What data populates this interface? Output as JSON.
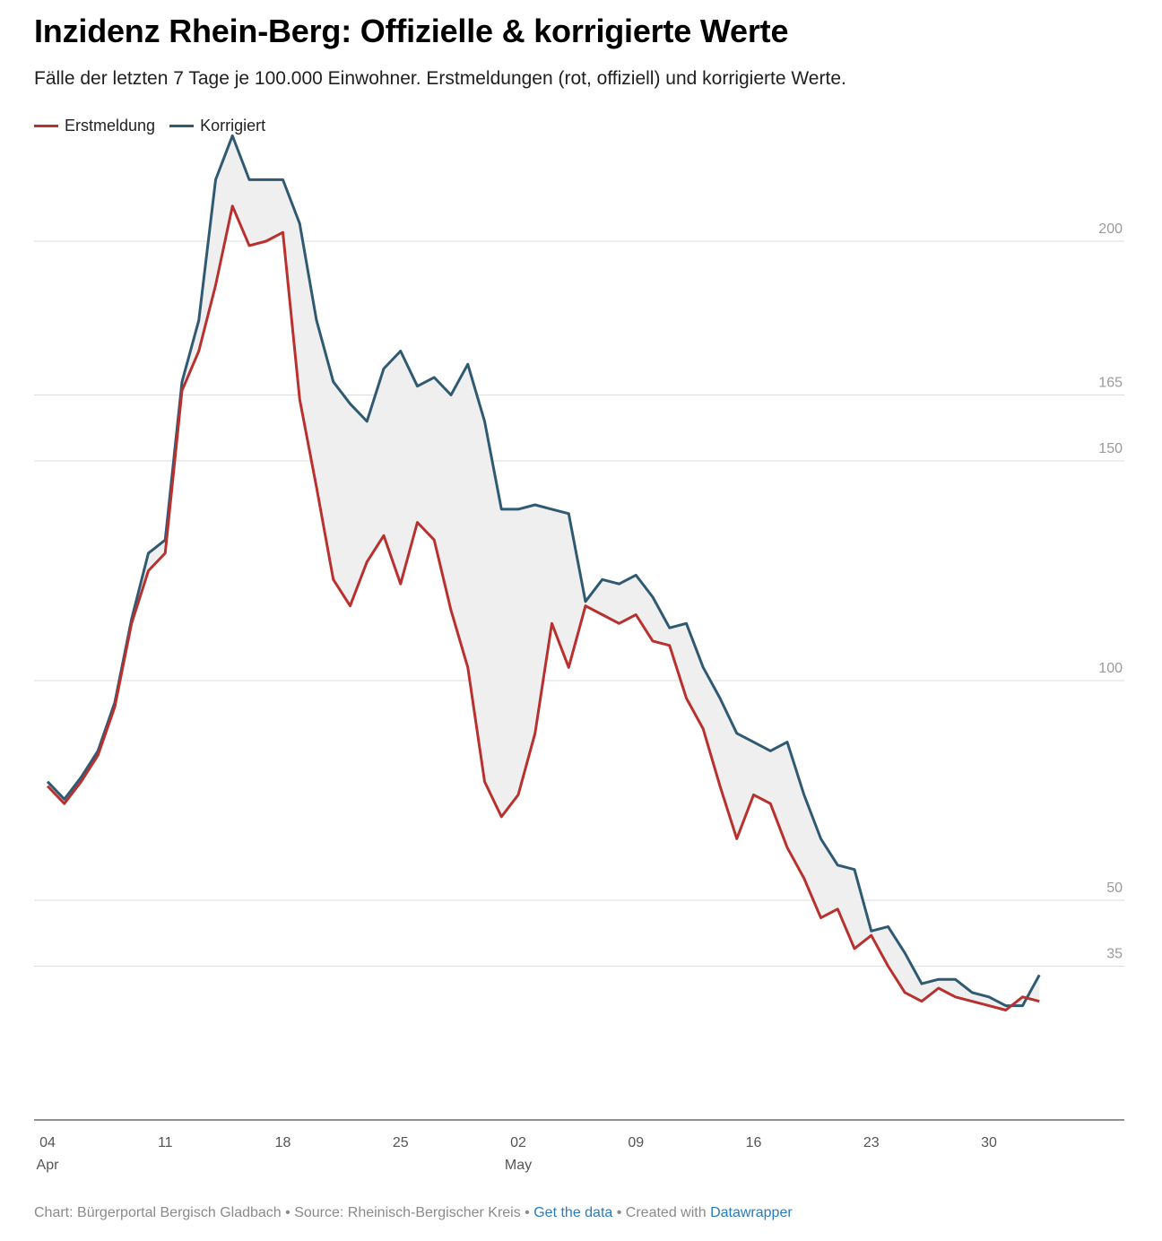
{
  "header": {
    "title": "Inzidenz Rhein-Berg: Offizielle & korrigierte Werte",
    "subtitle": "Fälle der letzten 7 Tage je 100.000 Einwohner. Erstmeldungen (rot, offiziell) und korrigierte Werte."
  },
  "colors": {
    "erstmeldung": "#b8312f",
    "korrigiert": "#2f5a72",
    "area": "#efefef",
    "grid": "#dddddd"
  },
  "chart_data": {
    "type": "line",
    "title": "Inzidenz Rhein-Berg: Offizielle & korrigierte Werte",
    "x_start": "2021-04-04",
    "x_ticks": [
      {
        "day": "04",
        "month": "Apr",
        "date": "2021-04-04"
      },
      {
        "day": "11",
        "month": "",
        "date": "2021-04-11"
      },
      {
        "day": "18",
        "month": "",
        "date": "2021-04-18"
      },
      {
        "day": "25",
        "month": "",
        "date": "2021-04-25"
      },
      {
        "day": "02",
        "month": "May",
        "date": "2021-05-02"
      },
      {
        "day": "09",
        "month": "",
        "date": "2021-05-09"
      },
      {
        "day": "16",
        "month": "",
        "date": "2021-05-16"
      },
      {
        "day": "23",
        "month": "",
        "date": "2021-05-23"
      },
      {
        "day": "30",
        "month": "",
        "date": "2021-05-30"
      }
    ],
    "y_ticks": [
      35,
      50,
      100,
      150,
      165,
      200
    ],
    "ylim": [
      0,
      225
    ],
    "legend_position": "top-left",
    "series": [
      {
        "name": "Erstmeldung",
        "values": [
          76,
          72,
          77,
          83,
          94,
          113,
          125,
          129,
          166,
          175,
          190,
          208,
          199,
          200,
          202,
          164,
          144,
          123,
          117,
          127,
          133,
          122,
          136,
          132,
          116,
          103,
          77,
          69,
          74,
          88,
          113,
          103,
          117,
          115,
          113,
          115,
          109,
          108,
          96,
          89,
          76,
          64,
          74,
          72,
          62,
          55,
          46,
          48,
          39,
          42,
          35,
          29,
          27,
          30,
          28,
          27,
          26,
          25,
          28,
          27
        ]
      },
      {
        "name": "Korrigiert",
        "values": [
          77,
          73,
          78,
          84,
          95,
          114,
          129,
          132,
          168,
          182,
          214,
          224,
          214,
          214,
          214,
          204,
          182,
          168,
          163,
          159,
          171,
          175,
          167,
          169,
          165,
          172,
          159,
          139,
          139,
          140,
          139,
          138,
          118,
          123,
          122,
          124,
          119,
          112,
          113,
          103,
          96,
          88,
          86,
          84,
          86,
          74,
          64,
          58,
          57,
          43,
          44,
          38,
          31,
          32,
          32,
          29,
          28,
          26,
          26,
          33
        ]
      }
    ]
  },
  "footer": {
    "prefix": "Chart: Bürgerportal Bergisch Gladbach • Source: Rheinisch-Bergischer Kreis • ",
    "link1": "Get the data",
    "middle": " • Created with ",
    "link2": "Datawrapper"
  }
}
